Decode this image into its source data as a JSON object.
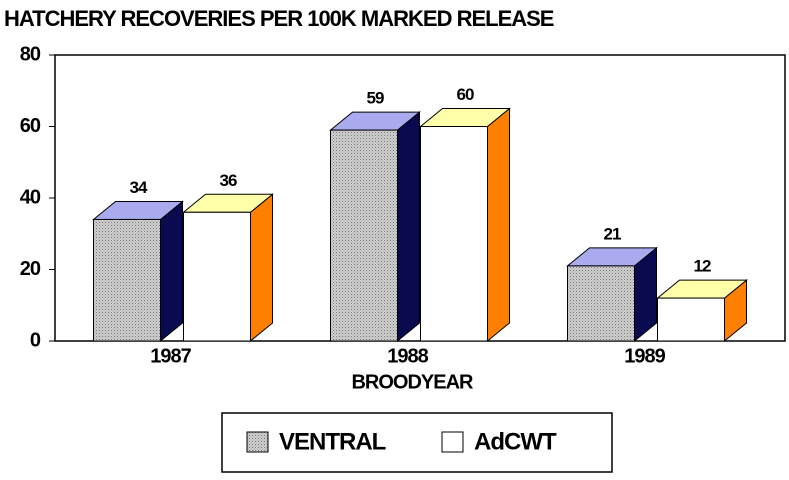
{
  "chart_data": {
    "type": "bar3d",
    "title": "HATCHERY RECOVERIES PER 100K MARKED RELEASE",
    "x_label": "BROODYEAR",
    "categories": [
      "1987",
      "1988",
      "1989"
    ],
    "series": [
      {
        "name": "VENTRAL",
        "color": "#cfcfcf",
        "top_color": "#aaaaee",
        "side_color": "#0a0a50",
        "pattern": true,
        "values": [
          34,
          59,
          21
        ]
      },
      {
        "name": "AdCWT",
        "color": "#ffffff",
        "top_color": "#ffffaa",
        "side_color": "#ff8000",
        "pattern": false,
        "values": [
          36,
          60,
          12
        ]
      }
    ],
    "ylim": [
      0,
      80
    ],
    "yticks": [
      0,
      20,
      40,
      60,
      80
    ]
  }
}
